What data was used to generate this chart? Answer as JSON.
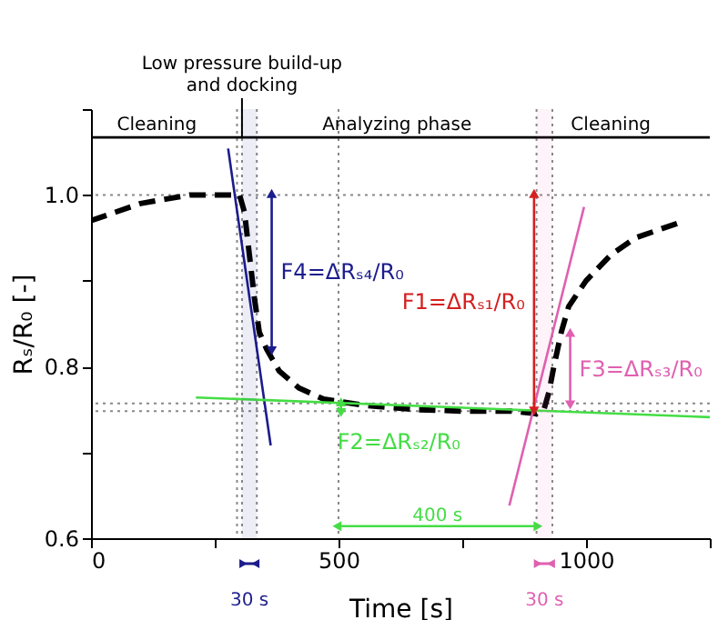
{
  "chart_data": {
    "type": "line",
    "xlabel": "Time [s]",
    "ylabel": "Rₛ/R₀ [-]",
    "xlim": [
      0,
      1250
    ],
    "xticks": [
      0,
      {
        "value": 250,
        "label": null
      },
      500,
      {
        "value": 750,
        "label": null
      },
      1000,
      {
        "value": 1250,
        "label": null
      }
    ],
    "ylim": [
      0.6,
      1.1
    ],
    "yticks": [
      0.6,
      {
        "value": 0.7,
        "label": null
      },
      0.8,
      {
        "value": 0.9,
        "label": null
      },
      {
        "value": 1.0,
        "label": "1.0"
      },
      {
        "value": 1.1,
        "label": null
      }
    ],
    "grid": false,
    "series": [
      {
        "color": "#000000",
        "line_style": "dashed",
        "marker": "none",
        "x": [
          0,
          50,
          100,
          150,
          200,
          250,
          300,
          310,
          320,
          330,
          340,
          355,
          380,
          420,
          470,
          550,
          650,
          750,
          850,
          900,
          915,
          925,
          935,
          950,
          965,
          1000,
          1050,
          1100,
          1150,
          1200
        ],
        "values": [
          0.97,
          0.98,
          0.99,
          0.995,
          1.0,
          1.0,
          1.0,
          0.98,
          0.93,
          0.88,
          0.84,
          0.82,
          0.795,
          0.775,
          0.762,
          0.755,
          0.75,
          0.748,
          0.748,
          0.745,
          0.75,
          0.77,
          0.8,
          0.84,
          0.87,
          0.9,
          0.93,
          0.95,
          0.96,
          0.97
        ]
      },
      {
        "color": "#1c1c8c",
        "line_style": "solid",
        "marker": "none",
        "x": [
          277,
          363
        ],
        "values": [
          1.054,
          0.708
        ]
      },
      {
        "color": "#e060b0",
        "line_style": "solid",
        "marker": "none",
        "x": [
          845,
          996
        ],
        "values": [
          0.638,
          0.986
        ]
      },
      {
        "color": "#44dd44",
        "line_style": "solid",
        "marker": "none",
        "x": [
          212,
          1250
        ],
        "values": [
          0.764,
          0.741
        ]
      },
      {
        "name": "F4=ΔRₛ₄/R₀",
        "color": "#1c1c8c",
        "line_style": "solid",
        "marker": "triangle",
        "x": [
          365,
          365
        ],
        "values": [
          1.0,
          0.82
        ]
      },
      {
        "name": "F1=ΔRₛ₁/R₀",
        "color": "#d42020",
        "line_style": "solid",
        "marker": "triangle",
        "x": [
          895,
          895
        ],
        "values": [
          1.0,
          0.75
        ]
      },
      {
        "name": "F3=ΔRₛ₃/R₀",
        "color": "#e060b0",
        "line_style": "solid",
        "marker": "triangle",
        "x": [
          968,
          968
        ],
        "values": [
          0.838,
          0.757
        ]
      },
      {
        "name": "400 s",
        "color": "#44dd44",
        "line_style": "solid",
        "marker": "triangle",
        "x": [
          500,
          900
        ],
        "values": [
          0.614,
          0.614
        ]
      },
      {
        "name": "F2=ΔRₛ₂/R₀",
        "color": "#44dd44",
        "line_style": "solid",
        "marker": "triangle",
        "x": [
          505,
          505
        ],
        "values": [
          0.757,
          0.748
        ]
      },
      {
        "color": "#000000",
        "line_style": "solid",
        "marker": "none",
        "x": [
          0,
          1250
        ],
        "values": [
          1.067,
          1.067
        ]
      }
    ],
    "ref_lines": [
      {
        "axis": "y",
        "value": 1.0,
        "line_style": "dotted",
        "color": "#888888"
      },
      {
        "axis": "y",
        "value": 0.757,
        "line_style": "dotted",
        "color": "#888888"
      },
      {
        "axis": "y",
        "value": 0.748,
        "line_style": "dotted",
        "color": "#888888"
      },
      {
        "axis": "x",
        "value": 295,
        "line_style": "dotted",
        "color": "#888888"
      },
      {
        "axis": "x",
        "value": 305,
        "line_style": "dotted",
        "color": "#888888"
      },
      {
        "axis": "x",
        "value": 335,
        "line_style": "dotted",
        "color": "#888888"
      },
      {
        "axis": "x",
        "value": 500,
        "line_style": "dotted",
        "color": "#888888"
      },
      {
        "axis": "x",
        "value": 900,
        "line_style": "dotted",
        "color": "#888888"
      },
      {
        "axis": "x",
        "value": 932,
        "line_style": "dotted",
        "color": "#888888"
      }
    ],
    "bands": [
      {
        "axis": "x",
        "from": 305,
        "to": 335,
        "label": "30 s",
        "color": "#1c1c8c"
      },
      {
        "axis": "x",
        "from": 900,
        "to": 932,
        "label": "30 s",
        "color": "#e060b0"
      }
    ],
    "annotations": [
      {
        "text": "Low pressure build-up\nand docking",
        "x": 305,
        "y": 1.067
      },
      {
        "text": "Cleaning",
        "x": 133,
        "y": 1.067
      },
      {
        "text": "Analyzing phase",
        "x": 618,
        "y": 1.067
      },
      {
        "text": "Cleaning",
        "x": 1050,
        "y": 1.067
      }
    ]
  }
}
